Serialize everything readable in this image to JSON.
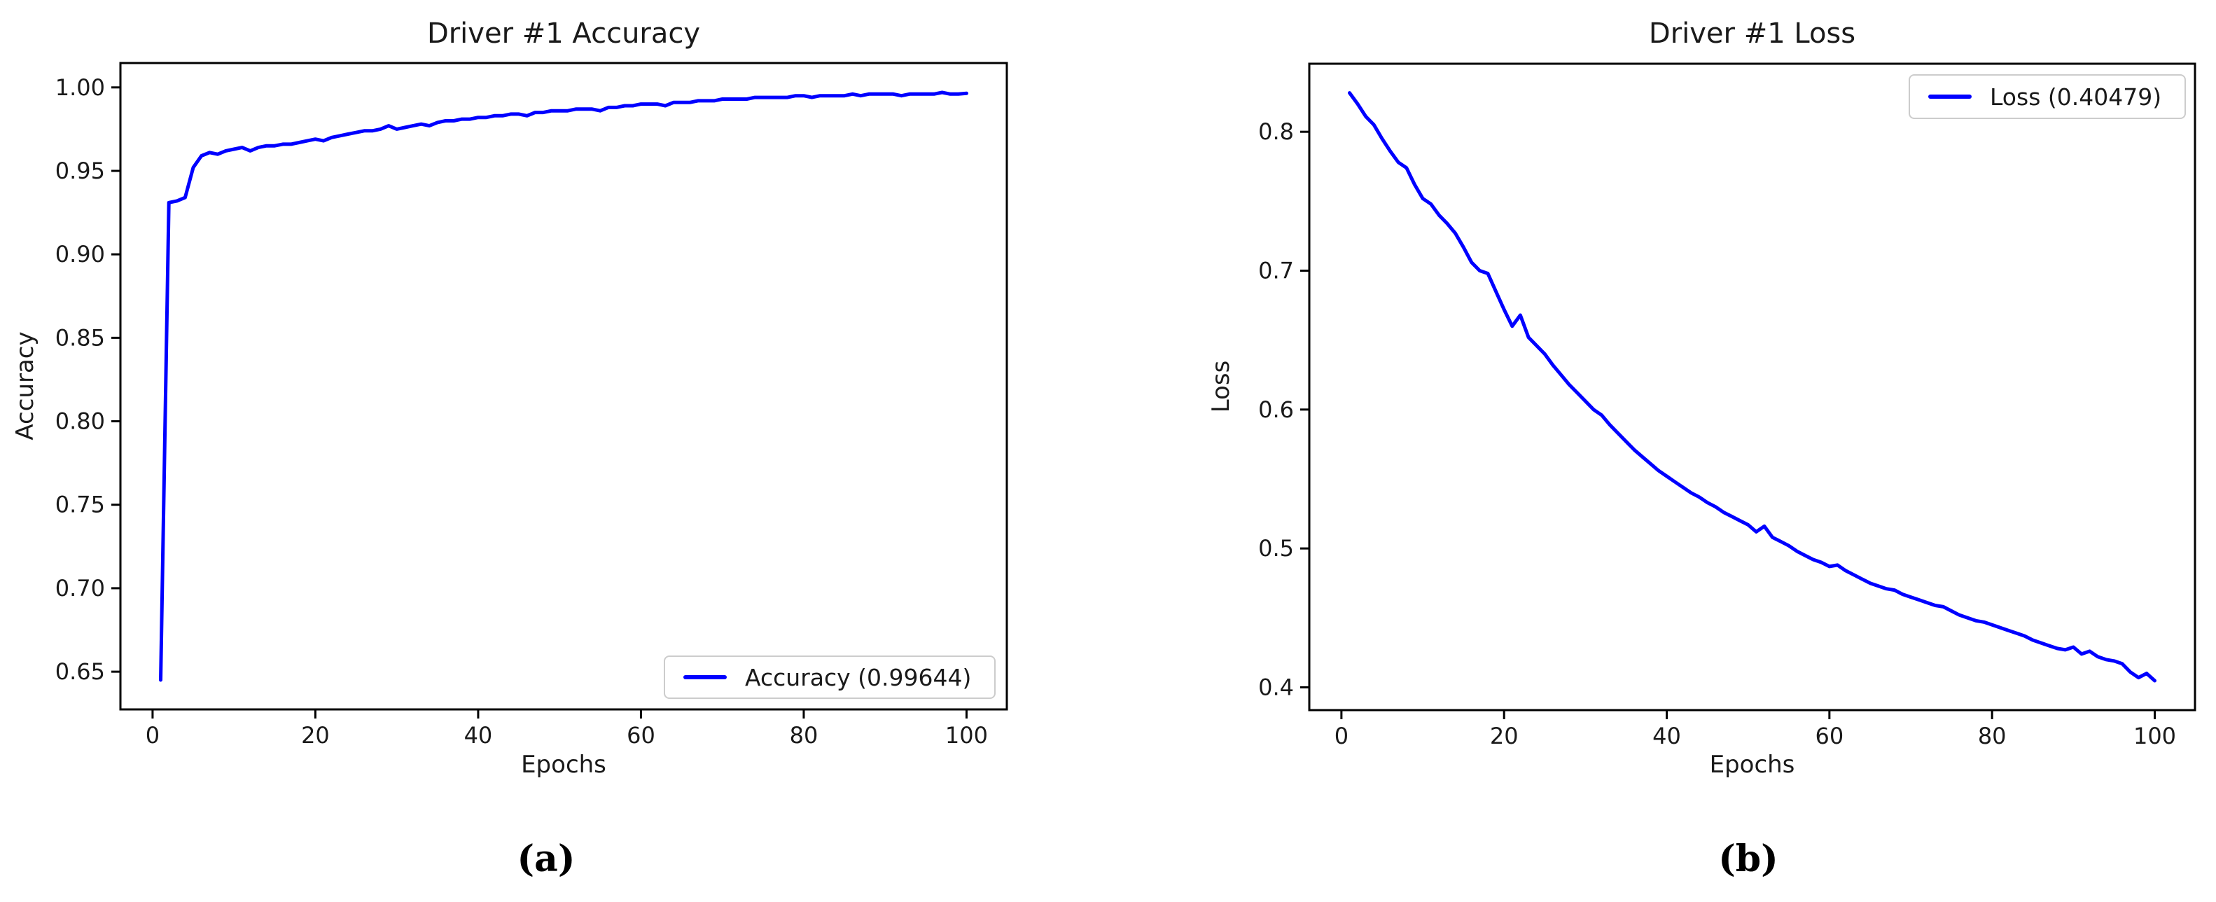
{
  "page": {
    "background": "#ffffff"
  },
  "chart_data": [
    {
      "type": "line",
      "title": "Driver #1 Accuracy",
      "xlabel": "Epochs",
      "ylabel": "Accuracy",
      "caption": "(a)",
      "legend": {
        "label": "Accuracy (0.99644)",
        "position": "lower right"
      },
      "line_color": "#0000ff",
      "axis_color": "#000000",
      "grid": false,
      "xlim": [
        -3.95,
        104.95
      ],
      "ylim": [
        0.6274,
        1.0146
      ],
      "xticks": {
        "values": [
          0,
          20,
          40,
          60,
          80,
          100
        ],
        "labels": [
          "0",
          "20",
          "40",
          "60",
          "80",
          "100"
        ]
      },
      "yticks": {
        "values": [
          1.0,
          0.95,
          0.9,
          0.85,
          0.8,
          0.75,
          0.7,
          0.65
        ],
        "labels": [
          "1.00",
          "0.95",
          "0.90",
          "0.85",
          "0.80",
          "0.75",
          "0.70",
          "0.65"
        ]
      },
      "series": [
        {
          "name": "Accuracy",
          "x_start": 1,
          "x_end": 100,
          "final_value": 0.99644,
          "y": [
            0.645,
            0.931,
            0.932,
            0.934,
            0.952,
            0.959,
            0.961,
            0.96,
            0.962,
            0.963,
            0.964,
            0.962,
            0.964,
            0.965,
            0.965,
            0.966,
            0.966,
            0.967,
            0.968,
            0.969,
            0.968,
            0.97,
            0.971,
            0.972,
            0.973,
            0.974,
            0.974,
            0.975,
            0.977,
            0.975,
            0.976,
            0.977,
            0.978,
            0.977,
            0.979,
            0.98,
            0.98,
            0.981,
            0.981,
            0.982,
            0.982,
            0.983,
            0.983,
            0.984,
            0.984,
            0.983,
            0.985,
            0.985,
            0.986,
            0.986,
            0.986,
            0.987,
            0.987,
            0.987,
            0.986,
            0.988,
            0.988,
            0.989,
            0.989,
            0.99,
            0.99,
            0.99,
            0.989,
            0.991,
            0.991,
            0.991,
            0.992,
            0.992,
            0.992,
            0.993,
            0.993,
            0.993,
            0.993,
            0.994,
            0.994,
            0.994,
            0.994,
            0.994,
            0.995,
            0.995,
            0.994,
            0.995,
            0.995,
            0.995,
            0.995,
            0.996,
            0.995,
            0.996,
            0.996,
            0.996,
            0.996,
            0.995,
            0.996,
            0.996,
            0.996,
            0.996,
            0.997,
            0.996,
            0.996,
            0.99644
          ]
        }
      ]
    },
    {
      "type": "line",
      "title": "Driver #1 Loss",
      "xlabel": "Epochs",
      "ylabel": "Loss",
      "caption": "(b)",
      "legend": {
        "label": "Loss (0.40479)",
        "position": "upper right"
      },
      "line_color": "#0000ff",
      "axis_color": "#000000",
      "grid": false,
      "xlim": [
        -3.95,
        104.95
      ],
      "ylim": [
        0.3836,
        0.849
      ],
      "xticks": {
        "values": [
          0,
          20,
          40,
          60,
          80,
          100
        ],
        "labels": [
          "0",
          "20",
          "40",
          "60",
          "80",
          "100"
        ]
      },
      "yticks": {
        "values": [
          0.8,
          0.7,
          0.6,
          0.5,
          0.4
        ],
        "labels": [
          "0.8",
          "0.7",
          "0.6",
          "0.5",
          "0.4"
        ]
      },
      "series": [
        {
          "name": "Loss",
          "x_start": 1,
          "x_end": 100,
          "final_value": 0.40479,
          "y": [
            0.828,
            0.82,
            0.811,
            0.805,
            0.795,
            0.786,
            0.778,
            0.774,
            0.762,
            0.752,
            0.748,
            0.74,
            0.734,
            0.727,
            0.717,
            0.706,
            0.7,
            0.698,
            0.685,
            0.672,
            0.66,
            0.668,
            0.652,
            0.646,
            0.64,
            0.632,
            0.625,
            0.618,
            0.612,
            0.606,
            0.6,
            0.596,
            0.589,
            0.583,
            0.577,
            0.571,
            0.566,
            0.561,
            0.556,
            0.552,
            0.548,
            0.544,
            0.54,
            0.537,
            0.533,
            0.53,
            0.526,
            0.523,
            0.52,
            0.517,
            0.512,
            0.516,
            0.508,
            0.505,
            0.502,
            0.498,
            0.495,
            0.492,
            0.49,
            0.487,
            0.488,
            0.484,
            0.481,
            0.478,
            0.475,
            0.473,
            0.471,
            0.47,
            0.467,
            0.465,
            0.463,
            0.461,
            0.459,
            0.458,
            0.455,
            0.452,
            0.45,
            0.448,
            0.447,
            0.445,
            0.443,
            0.441,
            0.439,
            0.437,
            0.434,
            0.432,
            0.43,
            0.428,
            0.427,
            0.429,
            0.424,
            0.426,
            0.422,
            0.42,
            0.419,
            0.417,
            0.411,
            0.407,
            0.41,
            0.40479
          ]
        }
      ]
    }
  ]
}
